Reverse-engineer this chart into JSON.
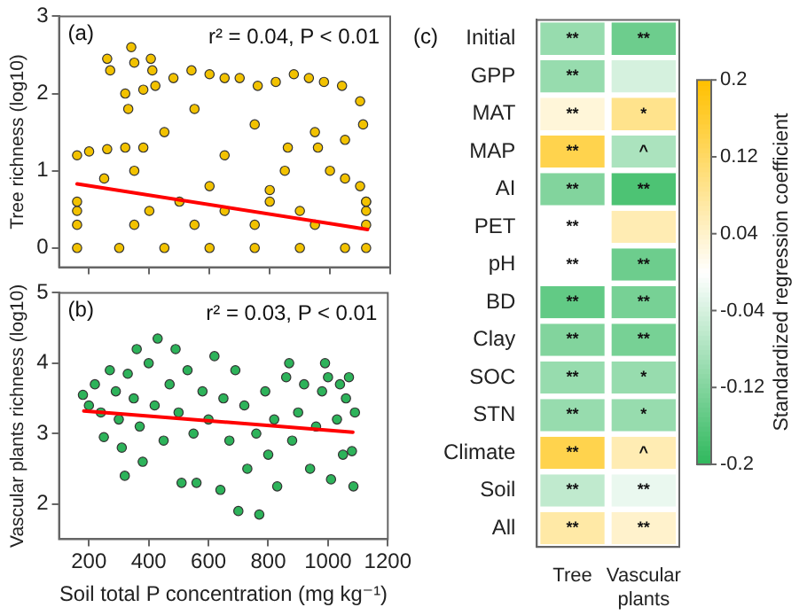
{
  "chart_data": [
    {
      "type": "scatter",
      "title": "(a)",
      "ylabel": "Tree richness (log10)",
      "annotations": [
        "r² = 0.04, P < 0.01"
      ],
      "xlim": [
        100,
        1200
      ],
      "ylim": [
        -0.25,
        3
      ],
      "xticks": [
        200,
        400,
        600,
        800,
        1000,
        1200
      ],
      "yticks": [
        0,
        1,
        2,
        3
      ],
      "tick_labels": "y",
      "marker": "circle",
      "series": [
        {
          "color": "#f2c200",
          "x": [
            160,
            300,
            450,
            600,
            750,
            900,
            1050,
            1120,
            160,
            350,
            550,
            750,
            950,
            1120,
            160,
            400,
            650,
            900,
            1120,
            160,
            500,
            800,
            1120,
            160,
            200,
            260,
            320,
            380,
            380,
            420,
            480,
            540,
            600,
            650,
            700,
            760,
            820,
            880,
            930,
            980,
            1040,
            1100,
            1110,
            1000,
            1050,
            1100,
            1120,
            250,
            350,
            450,
            550,
            650,
            750,
            850,
            950,
            1050,
            600,
            800,
            260,
            270,
            320,
            330,
            340,
            350,
            405,
            410,
            860,
            960
          ],
          "values": [
            0,
            0,
            0,
            0,
            0,
            0,
            0,
            0,
            0.3,
            0.3,
            0.3,
            0.3,
            0.3,
            0.3,
            0.48,
            0.48,
            0.48,
            0.48,
            0.48,
            0.6,
            0.6,
            0.6,
            0.6,
            1.2,
            1.25,
            1.28,
            1.3,
            1.3,
            2.05,
            2.1,
            2.2,
            2.3,
            2.25,
            2.2,
            2.2,
            2.1,
            2.15,
            2.25,
            2.2,
            2.15,
            2.1,
            1.9,
            1.6,
            1,
            0.9,
            0.8,
            0.6,
            0.9,
            1,
            1.5,
            1.8,
            1.2,
            1.6,
            1,
            1.5,
            1.4,
            0.8,
            0.75,
            2.45,
            2.3,
            2,
            1.8,
            2.6,
            2.4,
            2.45,
            2.3,
            1.3,
            1.3
          ]
        },
        {
          "type": "line",
          "color": "#ff0000",
          "marker": "none",
          "x": [
            160,
            1125
          ],
          "values": [
            0.83,
            0.24
          ]
        }
      ]
    },
    {
      "type": "scatter",
      "title": "(b)",
      "xlabel": "Soil total P concentration (mg kg⁻¹)",
      "ylabel": "Vascular plants richness (log10)",
      "annotations": [
        "r² = 0.03, P < 0.01"
      ],
      "xlim": [
        100,
        1200
      ],
      "ylim": [
        1.5,
        5
      ],
      "xticks": [
        200,
        400,
        600,
        800,
        1000,
        1200
      ],
      "yticks": [
        2,
        3,
        4,
        5
      ],
      "marker": "circle",
      "series": [
        {
          "color": "#2db35a",
          "x": [
            180,
            200,
            220,
            240,
            250,
            270,
            290,
            300,
            310,
            320,
            330,
            350,
            360,
            370,
            380,
            400,
            420,
            430,
            450,
            470,
            490,
            500,
            510,
            530,
            550,
            560,
            580,
            600,
            620,
            640,
            650,
            670,
            690,
            700,
            720,
            730,
            760,
            770,
            790,
            800,
            820,
            830,
            860,
            870,
            880,
            900,
            920,
            940,
            960,
            980,
            990,
            1000,
            1010,
            1030,
            1040,
            1050,
            1060,
            1070,
            1080,
            1085,
            1090
          ],
          "values": [
            3.55,
            3.4,
            3.7,
            3.3,
            2.95,
            3.9,
            3.6,
            3.2,
            2.8,
            2.4,
            3.85,
            3.5,
            4.2,
            3.1,
            2.6,
            4,
            3.4,
            4.35,
            2.9,
            3.7,
            4.2,
            3.3,
            2.3,
            3.9,
            3,
            2.3,
            3.6,
            3.2,
            4.1,
            2.2,
            3.5,
            2.9,
            3.9,
            1.9,
            3.4,
            2.5,
            3,
            1.85,
            3.6,
            2.7,
            3.2,
            2.25,
            3.8,
            4,
            2.9,
            3.3,
            3.7,
            2.5,
            3.1,
            3.6,
            4,
            3.8,
            2.35,
            3.2,
            3.7,
            2.7,
            3.5,
            3.8,
            2.75,
            2.25,
            3.3
          ]
        },
        {
          "type": "line",
          "color": "#ff0000",
          "marker": "none",
          "x": [
            183,
            1083
          ],
          "values": [
            3.32,
            3.02
          ]
        }
      ]
    },
    {
      "type": "heatmap",
      "title": "(c)",
      "categories": [
        "Tree",
        "Vascular plants"
      ],
      "y_categories": [
        "Initial",
        "GPP",
        "MAT",
        "MAP",
        "AI",
        "PET",
        "pH",
        "BD",
        "Clay",
        "SOC",
        "STN",
        "Climate",
        "Soil",
        "All"
      ],
      "cells": [
        [
          -0.1,
          -0.14
        ],
        [
          -0.1,
          -0.04
        ],
        [
          0.03,
          0.09
        ],
        [
          0.14,
          -0.08
        ],
        [
          -0.12,
          -0.17
        ],
        [
          0,
          0.06
        ],
        [
          0,
          -0.14
        ],
        [
          -0.15,
          -0.13
        ],
        [
          -0.12,
          -0.13
        ],
        [
          -0.1,
          -0.1
        ],
        [
          -0.1,
          -0.1
        ],
        [
          0.14,
          0.06
        ],
        [
          -0.06,
          -0.02
        ],
        [
          0.07,
          0.04
        ]
      ],
      "cell_labels": [
        [
          "**",
          "**"
        ],
        [
          "**",
          null
        ],
        [
          "**",
          "*"
        ],
        [
          "**",
          "^"
        ],
        [
          "**",
          "**"
        ],
        [
          "**",
          null
        ],
        [
          "**",
          "**"
        ],
        [
          "**",
          "**"
        ],
        [
          "**",
          "**"
        ],
        [
          "**",
          "*"
        ],
        [
          "**",
          "*"
        ],
        [
          "**",
          "^"
        ],
        [
          "**",
          "**"
        ],
        [
          "**",
          "**"
        ]
      ],
      "clabel": "Standardized regression coefficient",
      "clim": [
        -0.2,
        0.2
      ],
      "cticks": [
        -0.2,
        -0.12,
        -0.04,
        0.04,
        0.12,
        0.2
      ]
    }
  ]
}
